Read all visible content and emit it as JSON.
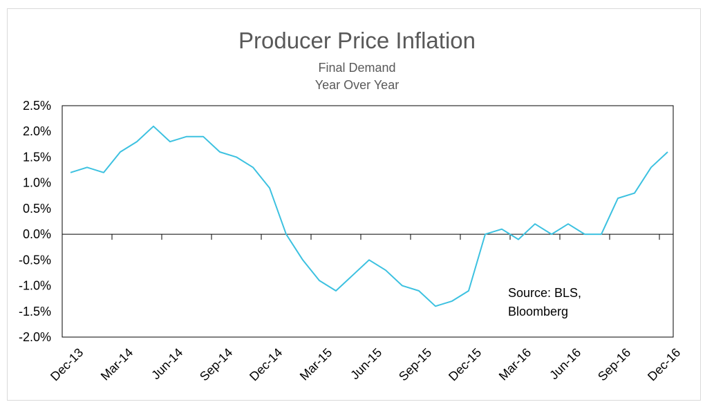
{
  "chart_data": {
    "type": "line",
    "title": "Producer Price Inflation",
    "subtitle_lines": [
      "Final Demand",
      "Year Over Year"
    ],
    "xlabel": "",
    "ylabel": "",
    "ylim": [
      -2.0,
      2.5
    ],
    "y_ticks": [
      "2.5%",
      "2.0%",
      "1.5%",
      "1.0%",
      "0.5%",
      "0.0%",
      "-0.5%",
      "-1.0%",
      "-1.5%",
      "-2.0%"
    ],
    "x_tick_labels": [
      "Dec-13",
      "Mar-14",
      "Jun-14",
      "Sep-14",
      "Dec-14",
      "Mar-15",
      "Jun-15",
      "Sep-15",
      "Dec-15",
      "Mar-16",
      "Jun-16",
      "Sep-16",
      "Dec-16"
    ],
    "x": [
      "Dec-13",
      "Jan-14",
      "Feb-14",
      "Mar-14",
      "Apr-14",
      "May-14",
      "Jun-14",
      "Jul-14",
      "Aug-14",
      "Sep-14",
      "Oct-14",
      "Nov-14",
      "Dec-14",
      "Jan-15",
      "Feb-15",
      "Mar-15",
      "Apr-15",
      "May-15",
      "Jun-15",
      "Jul-15",
      "Aug-15",
      "Sep-15",
      "Oct-15",
      "Nov-15",
      "Dec-15",
      "Jan-16",
      "Feb-16",
      "Mar-16",
      "Apr-16",
      "May-16",
      "Jun-16",
      "Jul-16",
      "Aug-16",
      "Sep-16",
      "Oct-16",
      "Nov-16",
      "Dec-16"
    ],
    "series": [
      {
        "values": [
          1.2,
          1.3,
          1.2,
          1.6,
          1.8,
          2.1,
          1.8,
          1.9,
          1.9,
          1.6,
          1.5,
          1.3,
          0.9,
          0.0,
          -0.5,
          -0.9,
          -1.1,
          -0.8,
          -0.5,
          -0.7,
          -1.0,
          -1.1,
          -1.4,
          -1.3,
          -1.1,
          0.0,
          0.1,
          -0.1,
          0.2,
          0.0,
          0.2,
          0.0,
          0.0,
          0.7,
          0.8,
          1.3,
          1.6
        ],
        "color": "#3cc1e0"
      }
    ],
    "grid": false,
    "legend": "none",
    "annotation_lines": [
      "Source: BLS,",
      "Bloomberg"
    ]
  }
}
